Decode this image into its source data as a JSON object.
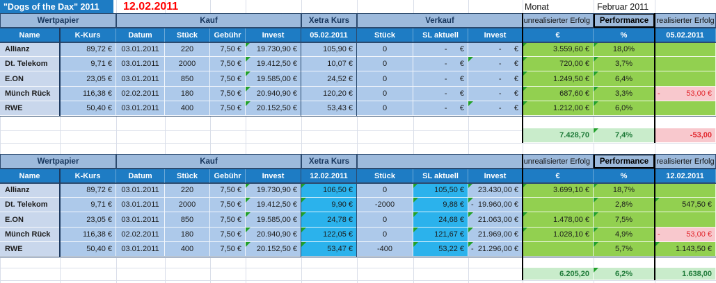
{
  "window": {
    "title_cell": "\"Dogs of the Dax\"  2011",
    "date_cell": "12.02.2011",
    "monat_label": "Monat",
    "monat_value": "Februar 2011"
  },
  "colors": {
    "header_blue": "#1E7CC4",
    "band_blue": "#9DBADC",
    "data_blue": "#ADC9EA",
    "name_blue": "#C9D7EC",
    "cyan": "#2BB2EC",
    "green": "#92D050",
    "light_green": "#C9ECCB",
    "pink": "#F8C8CD",
    "navy": "#17365D",
    "dark_green": "#1E7A38",
    "red": "#E2262C",
    "title_red": "#FF0000",
    "gridline": "#D9DEE9"
  },
  "tables": [
    {
      "id": "t1",
      "bands": [
        "Wertpapier",
        "Kauf",
        "Xetra Kurs",
        "Verkauf",
        "unrealisierter Erfolg",
        "Performance",
        "realisierter Erfolg"
      ],
      "headers": [
        "Name",
        "K-Kurs",
        "Datum",
        "Stück",
        "Gebühr",
        "Invest",
        "05.02.2011",
        "Stück",
        "SL aktuell",
        "Invest",
        "€",
        "%",
        "05.02.2011"
      ],
      "rows": [
        [
          "Allianz",
          "89,72 €",
          "03.01.2011",
          "220",
          "7,50 €",
          {
            "v": "19.730,90 €",
            "tri": true
          },
          "105,90 €",
          "0",
          "-      €",
          "-      €",
          {
            "v": "3.559,60 €",
            "tri": true
          },
          {
            "v": "18,0%",
            "tri": true
          },
          ""
        ],
        [
          "Dt. Telekom",
          "9,71 €",
          "03.01.2011",
          "2000",
          "7,50 €",
          {
            "v": "19.412,50 €",
            "tri": true
          },
          "10,07 €",
          "0",
          "-      €",
          {
            "v": "-      €",
            "tri": true
          },
          {
            "v": "720,00 €",
            "tri": true
          },
          {
            "v": "3,7%",
            "tri": true
          },
          ""
        ],
        [
          "E.ON",
          "23,05 €",
          "03.01.2011",
          "850",
          "7,50 €",
          {
            "v": "19.585,00 €",
            "tri": true
          },
          "24,52 €",
          "0",
          "-      €",
          "-      €",
          {
            "v": "1.249,50 €",
            "tri": true
          },
          {
            "v": "6,4%",
            "tri": true
          },
          ""
        ],
        [
          "Münch Rück",
          "116,38 €",
          "02.02.2011",
          "180",
          "7,50 €",
          {
            "v": "20.940,90 €",
            "tri": true
          },
          "120,20 €",
          "0",
          "-      €",
          "-      €",
          {
            "v": "687,60 €",
            "tri": true
          },
          {
            "v": "3,3%",
            "tri": true
          },
          {
            "v": "53,00 €",
            "minus": "-",
            "pink": true
          }
        ],
        [
          "RWE",
          "50,40 €",
          "03.01.2011",
          "400",
          "7,50 €",
          {
            "v": "20.152,50 €",
            "tri": true
          },
          "53,43 €",
          "0",
          "-      €",
          {
            "v": "-      €",
            "tri": true
          },
          {
            "v": "1.212,00 €",
            "tri": true
          },
          {
            "v": "6,0%",
            "tri": true
          },
          ""
        ]
      ],
      "totals": [
        {
          "v": "7.428,70"
        },
        {
          "v": "7,4%",
          "tri": true
        },
        {
          "v": "-53,00",
          "pink": true
        }
      ]
    },
    {
      "id": "t2",
      "bands": [
        "Wertpapier",
        "Kauf",
        "Xetra Kurs",
        "",
        "unrealisierter Erfolg",
        "Performance",
        "realisierter Erfolg"
      ],
      "headers": [
        "Name",
        "K-Kurs",
        "Datum",
        "Stück",
        "Gebühr",
        "Invest",
        "12.02.2011",
        "Stück",
        "SL aktuell",
        "Invest",
        "€",
        "%",
        "12.02.2011"
      ],
      "rows": [
        [
          "Allianz",
          "89,72 €",
          "03.01.2011",
          "220",
          "7,50 €",
          {
            "v": "19.730,90 €",
            "tri": true
          },
          {
            "v": "106,50 €",
            "tri": true
          },
          "0",
          {
            "v": "105,50 €",
            "tri": true
          },
          {
            "v": "23.430,00 €",
            "tri": true
          },
          {
            "v": "3.699,10 €",
            "tri": true
          },
          {
            "v": "18,7%",
            "tri": true
          },
          ""
        ],
        [
          "Dt. Telekom",
          "9,71 €",
          "03.01.2011",
          "2000",
          "7,50 €",
          {
            "v": "19.412,50 €",
            "tri": true
          },
          {
            "v": "9,90 €",
            "tri": true
          },
          "-2000",
          {
            "v": "9,88 €",
            "tri": true
          },
          {
            "v": "19.960,00 €",
            "minus": "-",
            "tri": true
          },
          "",
          {
            "v": "2,8%",
            "tri": true
          },
          {
            "v": "547,50 €",
            "tri": true
          }
        ],
        [
          "E.ON",
          "23,05 €",
          "03.01.2011",
          "850",
          "7,50 €",
          {
            "v": "19.585,00 €",
            "tri": true
          },
          {
            "v": "24,78 €",
            "tri": true
          },
          "0",
          {
            "v": "24,68 €",
            "tri": true
          },
          {
            "v": "21.063,00 €",
            "tri": true
          },
          {
            "v": "1.478,00 €",
            "tri": true
          },
          {
            "v": "7,5%",
            "tri": true
          },
          ""
        ],
        [
          "Münch Rück",
          "116,38 €",
          "02.02.2011",
          "180",
          "7,50 €",
          {
            "v": "20.940,90 €",
            "tri": true
          },
          {
            "v": "122,05 €",
            "tri": true
          },
          "0",
          {
            "v": "121,67 €",
            "tri": true
          },
          {
            "v": "21.969,00 €",
            "tri": true
          },
          {
            "v": "1.028,10 €",
            "tri": true
          },
          {
            "v": "4,9%",
            "tri": true
          },
          {
            "v": "53,00 €",
            "minus": "-",
            "pink": true
          }
        ],
        [
          "RWE",
          "50,40 €",
          "03.01.2011",
          "400",
          "7,50 €",
          {
            "v": "20.152,50 €",
            "tri": true
          },
          {
            "v": "53,47 €",
            "tri": true
          },
          "-400",
          {
            "v": "53,22 €",
            "tri": true
          },
          {
            "v": "21.296,00 €",
            "minus": "-",
            "tri": true
          },
          "",
          {
            "v": "5,7%",
            "tri": true
          },
          {
            "v": "1.143,50 €",
            "tri": true
          }
        ]
      ],
      "totals": [
        {
          "v": "6.205,20"
        },
        {
          "v": "6,2%",
          "tri": true
        },
        {
          "v": "1.638,00"
        }
      ]
    }
  ]
}
